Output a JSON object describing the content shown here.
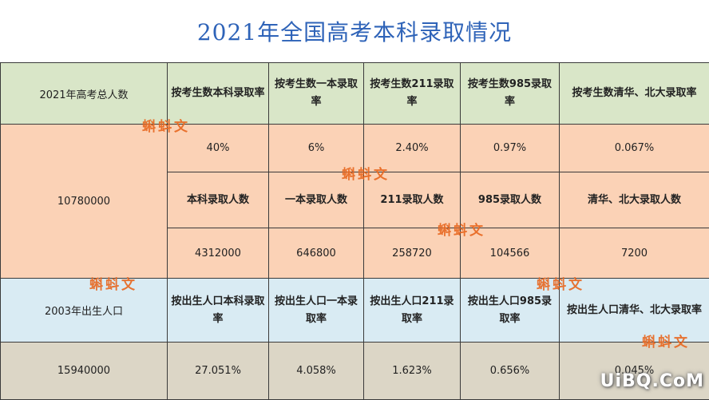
{
  "title": "2021年全国高考本科录取情况",
  "rows": {
    "header": {
      "total_label": "2021年高考总人数",
      "cols": [
        "按考生数本科录取率",
        "按考生数一本录取率",
        "按考生数211录取率",
        "按考生数985录取率",
        "按考生数清华、北大录取率"
      ]
    },
    "rates": [
      "40%",
      "6%",
      "2.40%",
      "0.97%",
      "0.067%"
    ],
    "total_value": "10780000",
    "count_labels": [
      "本科录取人数",
      "一本录取人数",
      "211录取人数",
      "985录取人数",
      "清华、北大录取人数"
    ],
    "counts": [
      "4312000",
      "646800",
      "258720",
      "104566",
      "7200"
    ],
    "birth_label": "2003年出生人口",
    "birth_cols": [
      "按出生人口本科录取率",
      "按出生人口一本录取率",
      "按出生人口211录取率",
      "按出生人口985录取率",
      "按出生人口清华、北大录取率"
    ],
    "birth_value": "15940000",
    "birth_rates": [
      "27.051%",
      "4.058%",
      "1.623%",
      "0.656%",
      "0.045%"
    ]
  },
  "watermark": "蝌蚪文",
  "logo": "UiBQ.CoM",
  "colors": {
    "title": "#2e63b8",
    "header_bg": "#d9e6c8",
    "body_bg": "#fbd2b6",
    "birth_header_bg": "#d9ebf3",
    "birth_row_bg": "#dcd6c6",
    "stamp": "#e8671f"
  }
}
